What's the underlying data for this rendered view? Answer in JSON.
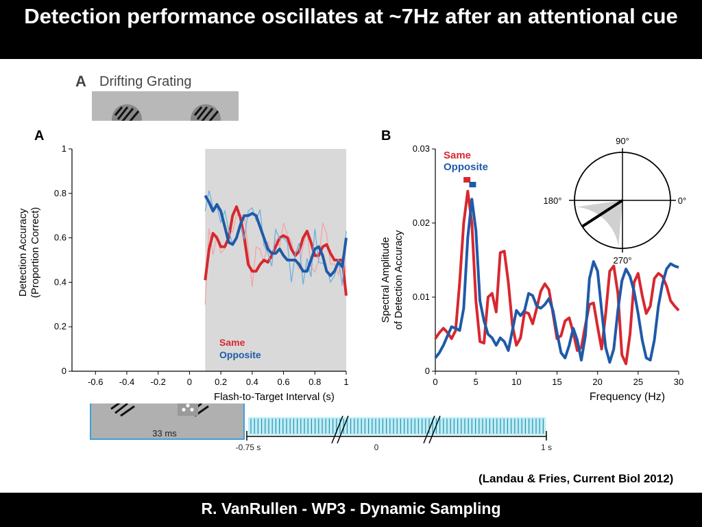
{
  "slide": {
    "title": "Detection performance oscillates at ~7Hz after an attentional cue",
    "footer": "R. VanRullen - WP3 - Dynamic Sampling",
    "citation": "(Landau & Fries, Current Biol 2012)"
  },
  "background_figure": {
    "panel_letter": "A",
    "panel_title": "Drifting Grating",
    "duration_label": "33 ms",
    "timeline_labels": [
      "-0.75 s",
      "0",
      "1 s"
    ]
  },
  "colors": {
    "same": "#d7282f",
    "opposite": "#1f5aa8",
    "same_light": "#f4a2a6",
    "opposite_light": "#6ab0de",
    "shade": "#d9d9d9"
  },
  "chart_data": [
    {
      "type": "line",
      "panel": "A",
      "xlabel": "Flash-to-Target Interval (s)",
      "ylabel": [
        "Detection Accuracy",
        "(Proportion Correct)"
      ],
      "xlim": [
        -0.75,
        1
      ],
      "ylim": [
        0,
        1
      ],
      "x_ticks": [
        -0.6,
        -0.4,
        -0.2,
        0,
        0.2,
        0.4,
        0.6,
        0.8,
        1
      ],
      "x_tick_labels": [
        "-0.6",
        "-0.4",
        "-0.2",
        "0",
        "0.2",
        "0.4",
        "0.6",
        "0.8",
        "1"
      ],
      "y_ticks": [
        0,
        0.2,
        0.4,
        0.6,
        0.8,
        1
      ],
      "y_tick_labels": [
        "0",
        "0.2",
        "0.4",
        "0.6",
        "0.8",
        "1"
      ],
      "shaded_region": [
        0.1,
        1
      ],
      "legend": [
        "Same",
        "Opposite"
      ],
      "legend_position": "bottom-right",
      "series": [
        {
          "name": "Same",
          "x": [
            0.1,
            0.125,
            0.15,
            0.175,
            0.2,
            0.225,
            0.25,
            0.275,
            0.3,
            0.325,
            0.35,
            0.375,
            0.4,
            0.425,
            0.45,
            0.475,
            0.5,
            0.525,
            0.55,
            0.575,
            0.6,
            0.625,
            0.65,
            0.675,
            0.7,
            0.725,
            0.75,
            0.775,
            0.8,
            0.825,
            0.85,
            0.875,
            0.9,
            0.925,
            0.95,
            0.975,
            1.0
          ],
          "y": [
            0.41,
            0.55,
            0.62,
            0.6,
            0.56,
            0.56,
            0.6,
            0.7,
            0.74,
            0.69,
            0.6,
            0.48,
            0.45,
            0.45,
            0.48,
            0.5,
            0.49,
            0.52,
            0.56,
            0.6,
            0.61,
            0.6,
            0.55,
            0.52,
            0.54,
            0.6,
            0.63,
            0.58,
            0.52,
            0.52,
            0.56,
            0.57,
            0.53,
            0.5,
            0.5,
            0.5,
            0.34
          ]
        },
        {
          "name": "Opposite",
          "x": [
            0.1,
            0.125,
            0.15,
            0.175,
            0.2,
            0.225,
            0.25,
            0.275,
            0.3,
            0.325,
            0.35,
            0.375,
            0.4,
            0.425,
            0.45,
            0.475,
            0.5,
            0.525,
            0.55,
            0.575,
            0.6,
            0.625,
            0.65,
            0.675,
            0.7,
            0.725,
            0.75,
            0.775,
            0.8,
            0.825,
            0.85,
            0.875,
            0.9,
            0.925,
            0.95,
            0.975,
            1.0
          ],
          "y": [
            0.79,
            0.76,
            0.72,
            0.75,
            0.72,
            0.65,
            0.58,
            0.57,
            0.6,
            0.66,
            0.7,
            0.7,
            0.71,
            0.7,
            0.65,
            0.6,
            0.55,
            0.53,
            0.53,
            0.55,
            0.52,
            0.5,
            0.5,
            0.5,
            0.48,
            0.45,
            0.45,
            0.5,
            0.55,
            0.56,
            0.52,
            0.45,
            0.43,
            0.45,
            0.49,
            0.47,
            0.6
          ]
        }
      ]
    },
    {
      "type": "line",
      "panel": "B",
      "xlabel": "Frequency (Hz)",
      "ylabel": [
        "Spectral Amplitude",
        "of Detection Accuracy"
      ],
      "xlim": [
        0,
        30
      ],
      "ylim": [
        0,
        0.03
      ],
      "x_ticks": [
        0,
        5,
        10,
        15,
        20,
        25,
        30
      ],
      "x_tick_labels": [
        "0",
        "5",
        "10",
        "15",
        "20",
        "25",
        "30"
      ],
      "y_ticks": [
        0,
        0.01,
        0.02,
        0.03
      ],
      "y_tick_labels": [
        "0",
        "0.01",
        "0.02",
        "0.03"
      ],
      "legend": [
        "Same",
        "Opposite"
      ],
      "legend_position": "top-left",
      "series": [
        {
          "name": "Same",
          "x": [
            0,
            0.5,
            1,
            1.5,
            2,
            2.5,
            3,
            3.5,
            4,
            4.5,
            5,
            5.5,
            6,
            6.5,
            7,
            7.5,
            8,
            8.5,
            9,
            9.5,
            10,
            10.5,
            11,
            11.5,
            12,
            12.5,
            13,
            13.5,
            14,
            14.5,
            15,
            15.5,
            16,
            16.5,
            17,
            17.5,
            18,
            18.5,
            19,
            19.5,
            20,
            20.5,
            21,
            21.5,
            22,
            22.5,
            23,
            23.5,
            24,
            24.5,
            25,
            25.5,
            26,
            26.5,
            27,
            27.5,
            28,
            28.5,
            29,
            29.5,
            30
          ],
          "y": [
            0.0044,
            0.0052,
            0.0058,
            0.0052,
            0.0044,
            0.0055,
            0.012,
            0.02,
            0.0243,
            0.02,
            0.0095,
            0.004,
            0.0038,
            0.01,
            0.0105,
            0.008,
            0.016,
            0.0162,
            0.012,
            0.0062,
            0.0035,
            0.0045,
            0.008,
            0.0078,
            0.0064,
            0.0085,
            0.0108,
            0.0118,
            0.011,
            0.0078,
            0.0044,
            0.0048,
            0.0068,
            0.0072,
            0.0052,
            0.0028,
            0.0032,
            0.0062,
            0.009,
            0.0092,
            0.006,
            0.003,
            0.0078,
            0.0135,
            0.0142,
            0.0105,
            0.0022,
            0.001,
            0.005,
            0.012,
            0.0132,
            0.0102,
            0.0078,
            0.0088,
            0.0125,
            0.0132,
            0.0128,
            0.0115,
            0.0095,
            0.0088,
            0.0082
          ]
        },
        {
          "name": "Opposite",
          "x": [
            0,
            0.5,
            1,
            1.5,
            2,
            2.5,
            3,
            3.5,
            4,
            4.5,
            5,
            5.5,
            6,
            6.5,
            7,
            7.5,
            8,
            8.5,
            9,
            9.5,
            10,
            10.5,
            11,
            11.5,
            12,
            12.5,
            13,
            13.5,
            14,
            14.5,
            15,
            15.5,
            16,
            16.5,
            17,
            17.5,
            18,
            18.5,
            19,
            19.5,
            20,
            20.5,
            21,
            21.5,
            22,
            22.5,
            23,
            23.5,
            24,
            24.5,
            25,
            25.5,
            26,
            26.5,
            27,
            27.5,
            28,
            28.5,
            29,
            29.5,
            30
          ],
          "y": [
            0.0018,
            0.0025,
            0.0035,
            0.0048,
            0.006,
            0.0058,
            0.0055,
            0.0085,
            0.018,
            0.0232,
            0.019,
            0.0095,
            0.0068,
            0.005,
            0.0045,
            0.0035,
            0.0045,
            0.004,
            0.0028,
            0.0055,
            0.0082,
            0.0075,
            0.0082,
            0.0105,
            0.0102,
            0.0088,
            0.0085,
            0.009,
            0.0098,
            0.0082,
            0.0052,
            0.0025,
            0.0018,
            0.0035,
            0.0058,
            0.0042,
            0.0015,
            0.0048,
            0.0125,
            0.0148,
            0.0135,
            0.0082,
            0.0032,
            0.0012,
            0.003,
            0.0082,
            0.0122,
            0.0138,
            0.0128,
            0.0108,
            0.0078,
            0.0042,
            0.0018,
            0.0015,
            0.0042,
            0.0088,
            0.0118,
            0.0138,
            0.0145,
            0.0142,
            0.014
          ]
        }
      ],
      "peak_markers": [
        {
          "series": "Same",
          "x": 3.9
        },
        {
          "series": "Opposite",
          "x": 4.6
        }
      ]
    },
    {
      "type": "polar",
      "panel": "B-inset",
      "angle_labels": [
        "90°",
        "180°",
        "0°",
        "270°"
      ],
      "phase_difference_deg": 213,
      "shaded_sector_deg": [
        188,
        265
      ]
    }
  ]
}
